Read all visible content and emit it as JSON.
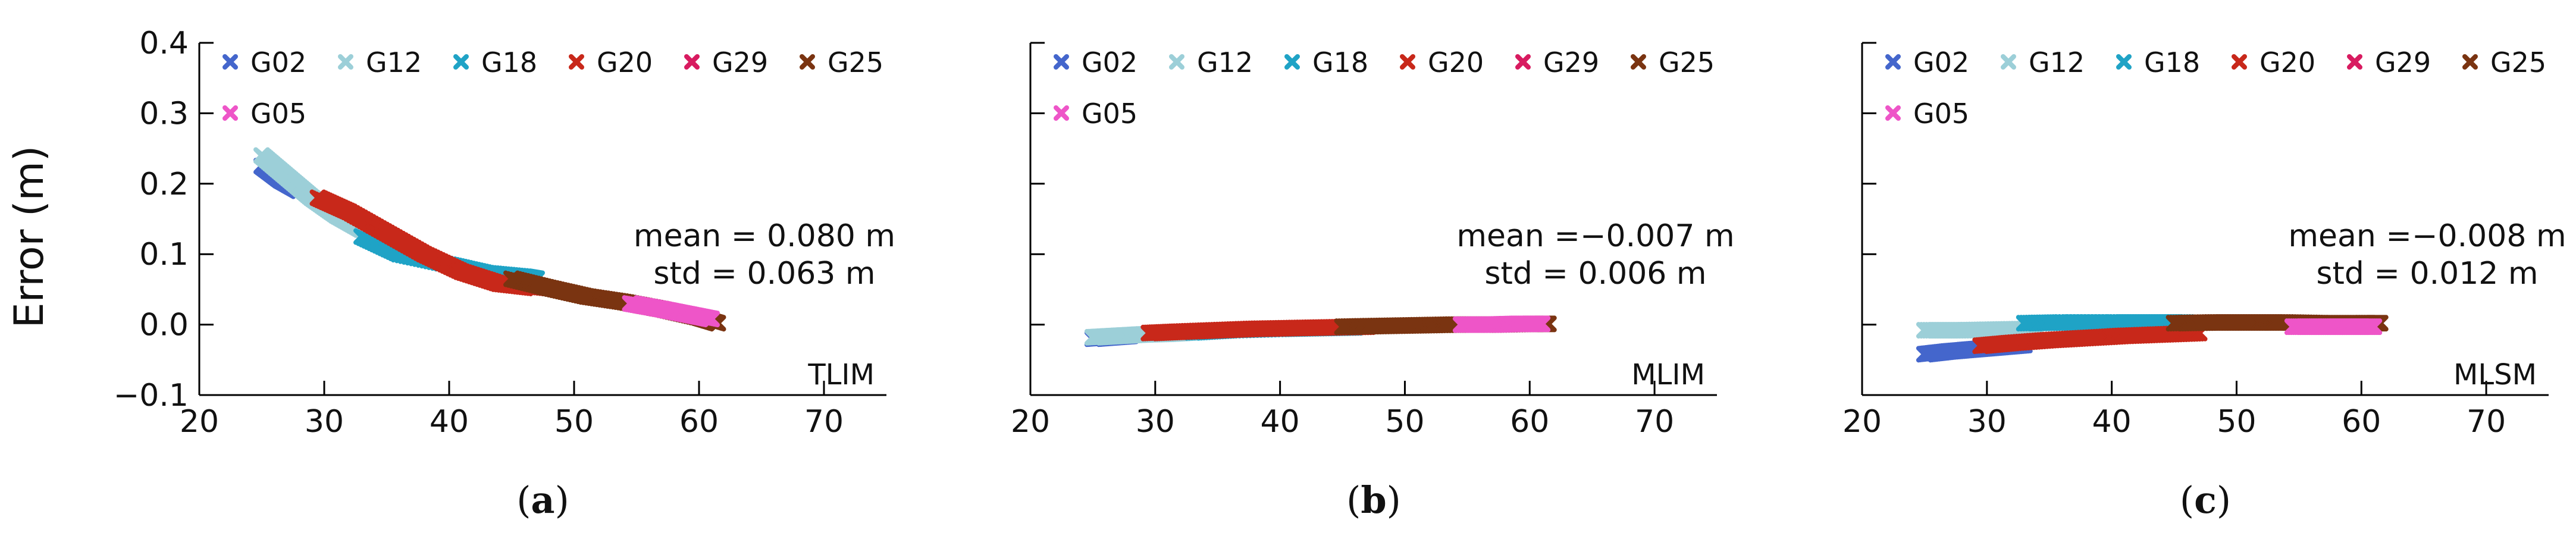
{
  "figure": {
    "ylabel": "Error (m)"
  },
  "chart_data": [
    {
      "type": "scatter",
      "panel_label": "(a)",
      "caption_letter": "a",
      "method": "TLIM",
      "mean_text": "mean = 0.080 m",
      "std_text": "std = 0.063 m",
      "xlim": [
        20,
        75
      ],
      "ylim": [
        -0.1,
        0.4
      ],
      "xticks": [
        20,
        30,
        40,
        50,
        60,
        70
      ],
      "yticks": [
        -0.1,
        0.0,
        0.1,
        0.2,
        0.3,
        0.4
      ],
      "ytick_labels": [
        "−0.1",
        "0.0",
        "0.1",
        "0.2",
        "0.3",
        "0.4"
      ],
      "ylabel": "Error (m)",
      "legend": [
        "G02",
        "G12",
        "G18",
        "G20",
        "G29",
        "G25",
        "G05"
      ],
      "series": [
        {
          "name": "G02",
          "color": "#4466cc",
          "x": [
            25,
            26.5,
            28
          ],
          "y": [
            0.225,
            0.205,
            0.19
          ]
        },
        {
          "name": "G12",
          "color": "#9ccfd8",
          "x": [
            25,
            27,
            29,
            31,
            33,
            36
          ],
          "y": [
            0.24,
            0.21,
            0.18,
            0.155,
            0.135,
            0.115
          ]
        },
        {
          "name": "G18",
          "color": "#1fa3c6",
          "x": [
            33,
            36,
            40,
            43,
            46,
            47
          ],
          "y": [
            0.125,
            0.1,
            0.085,
            0.073,
            0.068,
            0.065
          ]
        },
        {
          "name": "G20",
          "color": "#c8281a",
          "x": [
            29.5,
            32,
            35,
            38,
            41,
            44,
            47
          ],
          "y": [
            0.18,
            0.16,
            0.13,
            0.1,
            0.075,
            0.058,
            0.052
          ]
        },
        {
          "name": "G29",
          "color": "#d81b60",
          "x": [],
          "y": []
        },
        {
          "name": "G25",
          "color": "#7a3411",
          "x": [
            45,
            48,
            51,
            54,
            57,
            60,
            61.5
          ],
          "y": [
            0.065,
            0.052,
            0.04,
            0.032,
            0.022,
            0.01,
            0.002
          ]
        },
        {
          "name": "G05",
          "color": "#ee55c8",
          "x": [
            54.5,
            57,
            59,
            61
          ],
          "y": [
            0.03,
            0.022,
            0.015,
            0.008
          ]
        }
      ]
    },
    {
      "type": "scatter",
      "panel_label": "(b)",
      "caption_letter": "b",
      "method": "MLIM",
      "mean_text": "mean =−0.007 m",
      "std_text": "std = 0.006 m",
      "xlim": [
        20,
        75
      ],
      "ylim": [
        -0.1,
        0.4
      ],
      "xticks": [
        20,
        30,
        40,
        50,
        60,
        70
      ],
      "yticks": [
        -0.1,
        0.0,
        0.1,
        0.2,
        0.3,
        0.4
      ],
      "legend": [
        "G02",
        "G12",
        "G18",
        "G20",
        "G29",
        "G25",
        "G05"
      ],
      "series": [
        {
          "name": "G02",
          "color": "#4466cc",
          "x": [
            25,
            26.5,
            28
          ],
          "y": [
            -0.02,
            -0.018,
            -0.016
          ]
        },
        {
          "name": "G12",
          "color": "#9ccfd8",
          "x": [
            25,
            27,
            29,
            31,
            33
          ],
          "y": [
            -0.018,
            -0.016,
            -0.014,
            -0.013,
            -0.011
          ]
        },
        {
          "name": "G18",
          "color": "#1fa3c6",
          "x": [
            33,
            36,
            40,
            43,
            46
          ],
          "y": [
            -0.011,
            -0.008,
            -0.006,
            -0.005,
            -0.004
          ]
        },
        {
          "name": "G20",
          "color": "#c8281a",
          "x": [
            29.5,
            32,
            35,
            38,
            41,
            44,
            47
          ],
          "y": [
            -0.012,
            -0.01,
            -0.008,
            -0.006,
            -0.005,
            -0.004,
            -0.003
          ]
        },
        {
          "name": "G29",
          "color": "#d81b60",
          "x": [],
          "y": []
        },
        {
          "name": "G25",
          "color": "#7a3411",
          "x": [
            45,
            48,
            51,
            54,
            57,
            60,
            61.5
          ],
          "y": [
            -0.003,
            -0.002,
            -0.001,
            0.0,
            0.0,
            0.001,
            0.001
          ]
        },
        {
          "name": "G05",
          "color": "#ee55c8",
          "x": [
            54.5,
            57,
            59,
            61
          ],
          "y": [
            0.0,
            0.0,
            0.001,
            0.001
          ]
        }
      ]
    },
    {
      "type": "scatter",
      "panel_label": "(c)",
      "caption_letter": "c",
      "method": "MLSM",
      "mean_text": "mean =−0.008 m",
      "std_text": "std = 0.012 m",
      "xlim": [
        20,
        75
      ],
      "ylim": [
        -0.1,
        0.4
      ],
      "xticks": [
        20,
        30,
        40,
        50,
        60,
        70
      ],
      "yticks": [
        -0.1,
        0.0,
        0.1,
        0.2,
        0.3,
        0.4
      ],
      "legend": [
        "G02",
        "G12",
        "G18",
        "G20",
        "G29",
        "G25",
        "G05"
      ],
      "series": [
        {
          "name": "G02",
          "color": "#4466cc",
          "x": [
            25,
            27,
            29,
            31,
            33
          ],
          "y": [
            -0.042,
            -0.038,
            -0.035,
            -0.032,
            -0.029
          ]
        },
        {
          "name": "G12",
          "color": "#9ccfd8",
          "x": [
            25,
            28,
            31,
            34
          ],
          "y": [
            -0.008,
            -0.008,
            -0.007,
            -0.006
          ]
        },
        {
          "name": "G18",
          "color": "#1fa3c6",
          "x": [
            33,
            36,
            40,
            43,
            46
          ],
          "y": [
            0.002,
            0.003,
            0.003,
            0.003,
            0.003
          ]
        },
        {
          "name": "G20",
          "color": "#c8281a",
          "x": [
            29.5,
            32,
            35,
            38,
            41,
            44,
            47
          ],
          "y": [
            -0.03,
            -0.026,
            -0.022,
            -0.019,
            -0.016,
            -0.014,
            -0.012
          ]
        },
        {
          "name": "G29",
          "color": "#d81b60",
          "x": [],
          "y": []
        },
        {
          "name": "G25",
          "color": "#7a3411",
          "x": [
            45,
            48,
            51,
            54,
            57,
            60,
            61.5
          ],
          "y": [
            0.002,
            0.003,
            0.003,
            0.003,
            0.002,
            0.002,
            0.002
          ]
        },
        {
          "name": "G05",
          "color": "#ee55c8",
          "x": [
            54.5,
            57,
            59,
            61
          ],
          "y": [
            -0.003,
            -0.003,
            -0.003,
            -0.003
          ]
        }
      ]
    }
  ]
}
